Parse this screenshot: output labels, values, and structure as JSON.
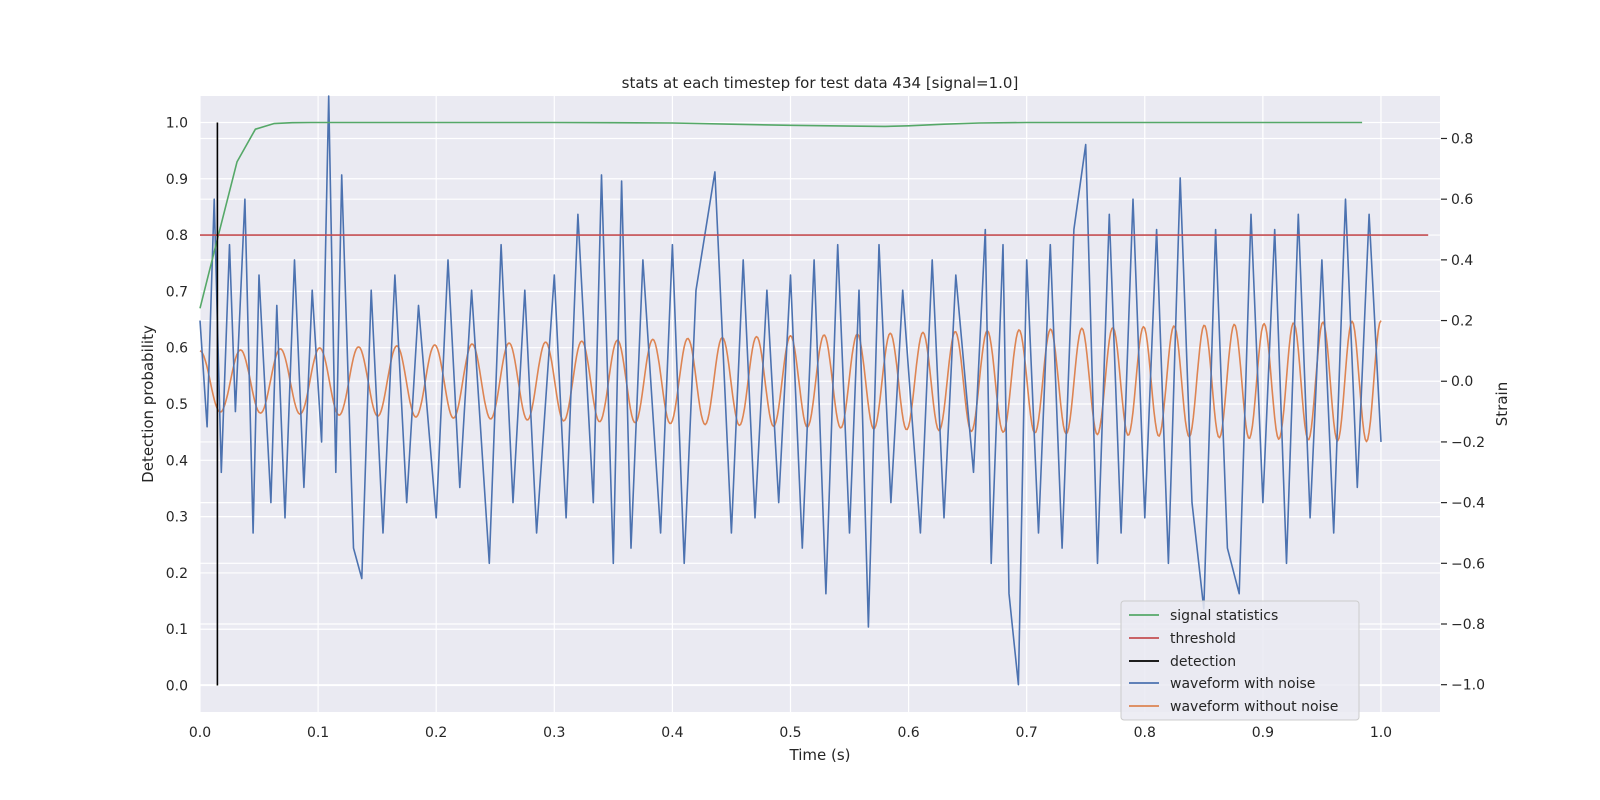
{
  "chart_data": {
    "type": "line",
    "title": "stats at each timestep for test data 434 [signal=1.0]",
    "xlabel": "Time (s)",
    "ylabel": "Detection probability",
    "y2label": "Strain",
    "xlim": [
      0.0,
      1.05
    ],
    "ylim": [
      -0.047,
      1.047
    ],
    "y2lim": [
      -1.09,
      0.94
    ],
    "xticks": [
      "0.0",
      "0.1",
      "0.2",
      "0.3",
      "0.4",
      "0.5",
      "0.6",
      "0.7",
      "0.8",
      "0.9",
      "1.0"
    ],
    "xtick_values": [
      0.0,
      0.1,
      0.2,
      0.3,
      0.4,
      0.5,
      0.6,
      0.7,
      0.8,
      0.9,
      1.0
    ],
    "yticks": [
      "0.0",
      "0.1",
      "0.2",
      "0.3",
      "0.4",
      "0.5",
      "0.6",
      "0.7",
      "0.8",
      "0.9",
      "1.0"
    ],
    "ytick_values": [
      0.0,
      0.1,
      0.2,
      0.3,
      0.4,
      0.5,
      0.6,
      0.7,
      0.8,
      0.9,
      1.0
    ],
    "y2ticks": [
      "−1.0",
      "−0.8",
      "−0.6",
      "−0.4",
      "−0.2",
      "0.0",
      "0.2",
      "0.4",
      "0.6",
      "0.8"
    ],
    "y2tick_values": [
      -1.0,
      -0.8,
      -0.6,
      -0.4,
      -0.2,
      0.0,
      0.2,
      0.4,
      0.6,
      0.8
    ],
    "grid": true,
    "legend_position": "lower-right",
    "series": [
      {
        "name": "signal statistics",
        "axis": "left",
        "color": "#55a868",
        "x": [
          0.0,
          0.0156,
          0.0313,
          0.0469,
          0.0625,
          0.0781,
          0.0938,
          0.125,
          0.2,
          0.3,
          0.35,
          0.4,
          0.45,
          0.5,
          0.55,
          0.58,
          0.6,
          0.63,
          0.66,
          0.7,
          0.75,
          0.8,
          0.9,
          0.984
        ],
        "y": [
          0.67,
          0.8,
          0.93,
          0.988,
          0.998,
          0.9995,
          1.0,
          1.0,
          1.0,
          1.0,
          0.9995,
          0.999,
          0.997,
          0.995,
          0.9935,
          0.993,
          0.994,
          0.997,
          0.999,
          1.0,
          1.0,
          1.0,
          1.0,
          1.0
        ]
      },
      {
        "name": "threshold",
        "axis": "left",
        "color": "#c44e52",
        "x": [
          0.0,
          1.04
        ],
        "y": [
          0.8,
          0.8
        ]
      },
      {
        "name": "detection",
        "axis": "left",
        "color": "#000000",
        "x": [
          0.0147,
          0.0147
        ],
        "y": [
          0.0,
          1.0
        ]
      },
      {
        "name": "waveform with noise",
        "axis": "right",
        "color": "#4c72b0",
        "x": [
          0.0,
          0.006,
          0.012,
          0.018,
          0.025,
          0.03,
          0.038,
          0.045,
          0.05,
          0.06,
          0.065,
          0.072,
          0.08,
          0.088,
          0.095,
          0.103,
          0.109,
          0.115,
          0.12,
          0.13,
          0.137,
          0.145,
          0.155,
          0.165,
          0.175,
          0.185,
          0.2,
          0.21,
          0.22,
          0.23,
          0.245,
          0.255,
          0.265,
          0.275,
          0.285,
          0.3,
          0.31,
          0.32,
          0.333,
          0.34,
          0.35,
          0.357,
          0.365,
          0.375,
          0.39,
          0.4,
          0.41,
          0.42,
          0.436,
          0.45,
          0.46,
          0.47,
          0.48,
          0.49,
          0.5,
          0.51,
          0.52,
          0.53,
          0.54,
          0.55,
          0.558,
          0.566,
          0.575,
          0.585,
          0.595,
          0.61,
          0.62,
          0.63,
          0.64,
          0.655,
          0.665,
          0.67,
          0.68,
          0.685,
          0.693,
          0.7,
          0.71,
          0.72,
          0.73,
          0.74,
          0.75,
          0.76,
          0.77,
          0.78,
          0.79,
          0.8,
          0.81,
          0.82,
          0.83,
          0.84,
          0.85,
          0.86,
          0.87,
          0.88,
          0.89,
          0.9,
          0.91,
          0.92,
          0.93,
          0.94,
          0.95,
          0.96,
          0.97,
          0.98,
          0.99,
          1.0
        ],
        "y": [
          0.2,
          -0.15,
          0.6,
          -0.3,
          0.45,
          -0.1,
          0.6,
          -0.5,
          0.35,
          -0.4,
          0.25,
          -0.45,
          0.4,
          -0.35,
          0.3,
          -0.2,
          0.94,
          -0.3,
          0.68,
          -0.55,
          -0.65,
          0.3,
          -0.5,
          0.35,
          -0.4,
          0.25,
          -0.45,
          0.4,
          -0.35,
          0.3,
          -0.6,
          0.45,
          -0.4,
          0.3,
          -0.5,
          0.35,
          -0.45,
          0.55,
          -0.4,
          0.68,
          -0.6,
          0.66,
          -0.55,
          0.4,
          -0.5,
          0.45,
          -0.6,
          0.3,
          0.69,
          -0.5,
          0.4,
          -0.45,
          0.3,
          -0.4,
          0.35,
          -0.55,
          0.4,
          -0.7,
          0.45,
          -0.5,
          0.3,
          -0.81,
          0.45,
          -0.4,
          0.3,
          -0.5,
          0.4,
          -0.45,
          0.35,
          -0.3,
          0.5,
          -0.6,
          0.45,
          -0.7,
          -1.0,
          0.4,
          -0.5,
          0.45,
          -0.55,
          0.5,
          0.78,
          -0.6,
          0.55,
          -0.5,
          0.6,
          -0.45,
          0.5,
          -0.6,
          0.67,
          -0.4,
          -0.75,
          0.5,
          -0.55,
          -0.7,
          0.55,
          -0.4,
          0.5,
          -0.6,
          0.55,
          -0.45,
          0.4,
          -0.5,
          0.6,
          -0.35,
          0.55,
          -0.2
        ]
      },
      {
        "name": "waveform without noise",
        "axis": "right",
        "color": "#dd8452",
        "amplitude_start": 0.1,
        "amplitude_end": 0.2,
        "freq_start_hz": 29,
        "freq_end_hz": 41,
        "x_range": [
          0.0,
          1.0
        ]
      }
    ]
  },
  "legend": {
    "items": [
      {
        "label": "signal statistics",
        "color": "#55a868"
      },
      {
        "label": "threshold",
        "color": "#c44e52"
      },
      {
        "label": "detection",
        "color": "#000000"
      },
      {
        "label": "waveform with noise",
        "color": "#4c72b0"
      },
      {
        "label": "waveform without noise",
        "color": "#dd8452"
      }
    ]
  },
  "colors": {
    "plot_background": "#eaeaf2",
    "grid": "#ffffff",
    "text": "#262626"
  }
}
